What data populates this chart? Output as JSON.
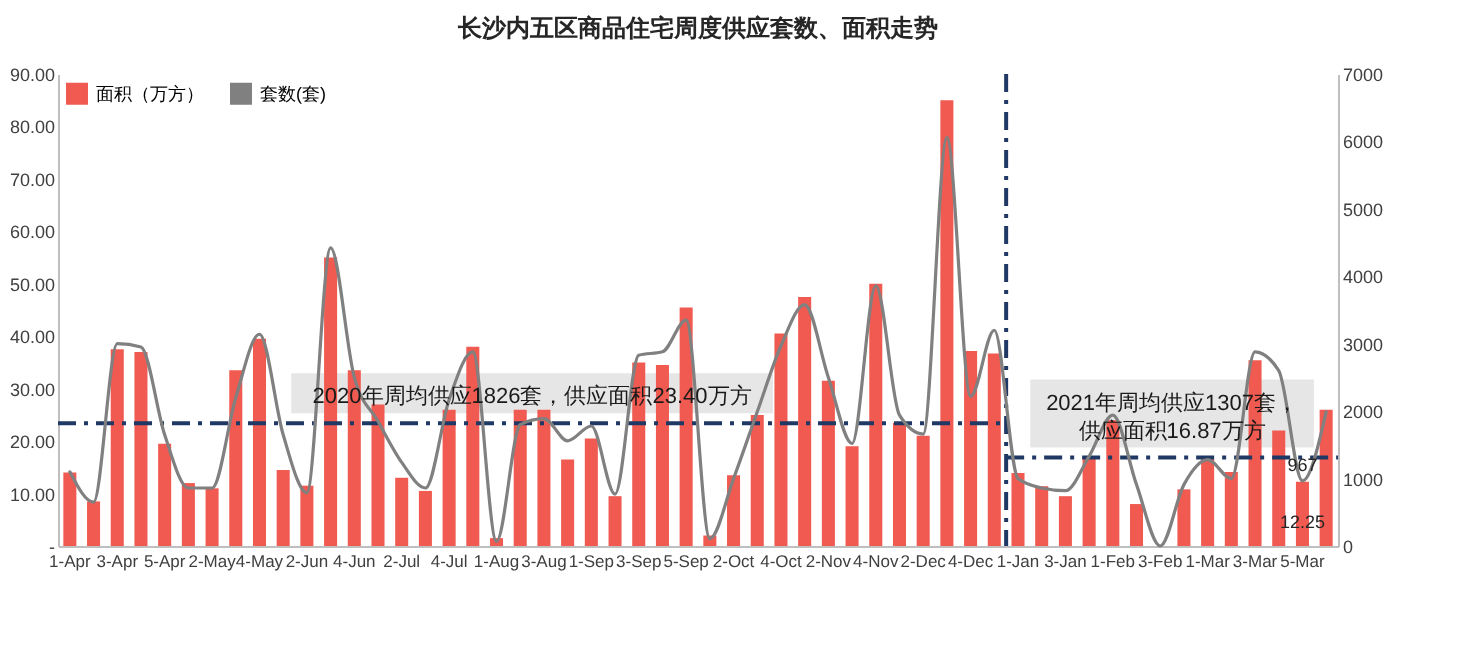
{
  "chart_data": {
    "type": "bar",
    "title": "长沙内五区商品住宅周度供应套数、面积走势",
    "categories": [
      "1-Apr",
      null,
      "3-Apr",
      null,
      "5-Apr",
      null,
      "2-May",
      null,
      "4-May",
      null,
      "2-Jun",
      null,
      "4-Jun",
      null,
      "2-Jul",
      null,
      "4-Jul",
      null,
      "1-Aug",
      null,
      "3-Aug",
      null,
      "1-Sep",
      null,
      "3-Sep",
      null,
      "5-Sep",
      null,
      "2-Oct",
      null,
      "4-Oct",
      null,
      "2-Nov",
      null,
      "4-Nov",
      null,
      "2-Dec",
      null,
      "4-Dec",
      null,
      "1-Jan",
      null,
      "3-Jan",
      null,
      "1-Feb",
      null,
      "3-Feb",
      null,
      "1-Mar",
      null,
      "3-Mar",
      null,
      "5-Mar",
      null
    ],
    "series": [
      {
        "name": "面积（万方）",
        "color": "#f05a50",
        "values": [
          14,
          8.5,
          37.5,
          37,
          19.5,
          12,
          11,
          33.5,
          39.5,
          14.5,
          11.5,
          55,
          33.5,
          27,
          13,
          10.5,
          26,
          38,
          1.5,
          26,
          26,
          16.5,
          20.5,
          9.5,
          35,
          34.5,
          45.5,
          2,
          13.5,
          25,
          40.5,
          47.5,
          31.5,
          19,
          50,
          23.5,
          21,
          85,
          37.2,
          36.7,
          13.9,
          11.4,
          9.5,
          16.9,
          24,
          8,
          0,
          10.8,
          16.7,
          14.1,
          35.4,
          22,
          12.25,
          26
        ],
        "value_labels": [
          null,
          null,
          null,
          null,
          null,
          null,
          null,
          null,
          null,
          null,
          null,
          null,
          null,
          null,
          null,
          null,
          null,
          null,
          null,
          null,
          null,
          null,
          null,
          null,
          null,
          null,
          null,
          null,
          null,
          null,
          null,
          null,
          null,
          null,
          null,
          null,
          null,
          null,
          null,
          null,
          null,
          null,
          null,
          null,
          null,
          null,
          null,
          null,
          null,
          null,
          null,
          null,
          "12.25",
          null
        ]
      },
      {
        "name": "套数(套)",
        "type": "line",
        "axis": "y2",
        "color": "#808080",
        "values": [
          1100,
          650,
          3000,
          2950,
          1650,
          860,
          860,
          2200,
          3140,
          1650,
          790,
          4420,
          2500,
          1850,
          1240,
          860,
          2170,
          2880,
          70,
          1800,
          1890,
          1560,
          1780,
          770,
          2830,
          2880,
          3350,
          110,
          1000,
          1990,
          2970,
          3580,
          2500,
          1520,
          3860,
          1940,
          1660,
          6060,
          2220,
          3200,
          1000,
          860,
          820,
          1330,
          1940,
          910,
          0,
          910,
          1280,
          1000,
          2880,
          2600,
          967,
          1990
        ],
        "value_labels": [
          null,
          null,
          null,
          null,
          null,
          null,
          null,
          null,
          null,
          null,
          null,
          null,
          null,
          null,
          null,
          null,
          null,
          null,
          null,
          null,
          null,
          null,
          null,
          null,
          null,
          null,
          null,
          null,
          null,
          null,
          null,
          null,
          null,
          null,
          null,
          null,
          null,
          null,
          null,
          null,
          null,
          null,
          null,
          null,
          null,
          null,
          null,
          null,
          null,
          null,
          null,
          null,
          "967",
          null
        ]
      }
    ],
    "ylim": [
      0,
      90
    ],
    "yticks": [
      {
        "value": 0,
        "label": "-"
      },
      {
        "value": 10,
        "label": "10.00"
      },
      {
        "value": 20,
        "label": "20.00"
      },
      {
        "value": 30,
        "label": "30.00"
      },
      {
        "value": 40,
        "label": "40.00"
      },
      {
        "value": 50,
        "label": "50.00"
      },
      {
        "value": 60,
        "label": "60.00"
      },
      {
        "value": 70,
        "label": "70.00"
      },
      {
        "value": 80,
        "label": "80.00"
      },
      {
        "value": 90,
        "label": "90.00"
      }
    ],
    "y2lim": [
      0,
      7000
    ],
    "y2ticks": [
      0,
      {
        "value": 1000,
        "label": "1000"
      },
      {
        "value": 2000,
        "label": "2000"
      },
      {
        "value": 3000,
        "label": "3000"
      },
      {
        "value": 4000,
        "label": "4000"
      },
      {
        "value": 5000,
        "label": "5000"
      },
      {
        "value": 6000,
        "label": "6000"
      },
      {
        "value": 7000,
        "label": "7000"
      }
    ],
    "ref_lines": [
      {
        "axis": "x",
        "value": "1-Jan",
        "color": "#1f3864",
        "line_style": "dashed"
      },
      {
        "axis": "y",
        "value": 23.4,
        "label": "2020年周均供应1826套，供应面积23.40万方",
        "color": "#1f3864",
        "line_style": "dashed"
      },
      {
        "axis": "y",
        "value": 16.87,
        "label": "2021年周均供应1307套，供应面积16.87万方",
        "color": "#1f3864",
        "line_style": "dashed"
      }
    ],
    "legend": "top left",
    "grid": false
  }
}
